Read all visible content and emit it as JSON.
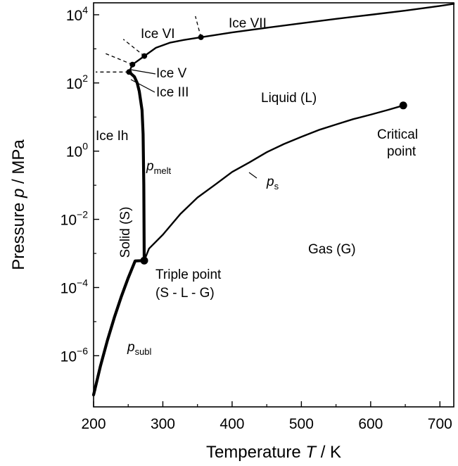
{
  "chart_data": {
    "type": "line",
    "xlabel": {
      "prefix": "Temperature ",
      "symbol": "T",
      "suffix": " / K"
    },
    "ylabel": {
      "prefix": "Pressure ",
      "symbol": "p",
      "suffix": " / MPa"
    },
    "xlim": [
      200,
      720
    ],
    "ylim_log10": [
      -7.5,
      4.35
    ],
    "y_scale": "log",
    "grid": false,
    "x_ticks": [
      {
        "value": 200,
        "label": "200"
      },
      {
        "value": 300,
        "label": "300"
      },
      {
        "value": 400,
        "label": "400"
      },
      {
        "value": 500,
        "label": "500"
      },
      {
        "value": 600,
        "label": "600"
      },
      {
        "value": 700,
        "label": "700"
      }
    ],
    "y_ticks": [
      {
        "exp": 4,
        "base": "10",
        "sup": "4"
      },
      {
        "exp": 2,
        "base": "10",
        "sup": "2"
      },
      {
        "exp": 0,
        "base": "10",
        "sup": "0"
      },
      {
        "exp": -2,
        "base": "10",
        "sup": "−2"
      },
      {
        "exp": -4,
        "base": "10",
        "sup": "−4"
      },
      {
        "exp": -6,
        "base": "10",
        "sup": "−6"
      }
    ],
    "series": [
      {
        "key": "sublimation",
        "points": [
          [
            200,
            -7.15
          ],
          [
            210,
            -6.3
          ],
          [
            220,
            -5.55
          ],
          [
            230,
            -4.88
          ],
          [
            240,
            -4.27
          ],
          [
            250,
            -3.72
          ],
          [
            260,
            -3.22
          ],
          [
            273.16,
            -3.21
          ]
        ]
      },
      {
        "key": "melting",
        "points": [
          [
            273.16,
            -3.21
          ],
          [
            272.5,
            -1.0
          ],
          [
            271.5,
            0.5
          ],
          [
            270,
            1.2
          ],
          [
            266,
            1.75
          ],
          [
            263,
            2.0
          ],
          [
            259,
            2.18
          ],
          [
            252,
            2.31
          ],
          [
            251.2,
            2.32
          ]
        ]
      },
      {
        "key": "saturation",
        "points": [
          [
            273.16,
            -3.21
          ],
          [
            280,
            -2.86
          ],
          [
            300,
            -2.45
          ],
          [
            325,
            -1.85
          ],
          [
            350,
            -1.36
          ],
          [
            375,
            -0.99
          ],
          [
            400,
            -0.61
          ],
          [
            425,
            -0.33
          ],
          [
            450,
            -0.03
          ],
          [
            475,
            0.21
          ],
          [
            500,
            0.42
          ],
          [
            525,
            0.62
          ],
          [
            550,
            0.78
          ],
          [
            575,
            0.94
          ],
          [
            600,
            1.07
          ],
          [
            625,
            1.21
          ],
          [
            647.1,
            1.34
          ]
        ]
      },
      {
        "key": "ice_v_vi",
        "points": [
          [
            251.2,
            2.32
          ],
          [
            256.2,
            2.54
          ],
          [
            273.3,
            2.79
          ],
          [
            290,
            3.03
          ],
          [
            310,
            3.18
          ],
          [
            330,
            3.26
          ],
          [
            355,
            3.34
          ]
        ]
      },
      {
        "key": "ice_vii",
        "points": [
          [
            355,
            3.34
          ],
          [
            400,
            3.48
          ],
          [
            450,
            3.62
          ],
          [
            500,
            3.75
          ],
          [
            550,
            3.88
          ],
          [
            600,
            4.0
          ],
          [
            650,
            4.12
          ],
          [
            700,
            4.26
          ],
          [
            720,
            4.32
          ]
        ]
      }
    ],
    "phase_boundaries_dashed": [
      {
        "points": [
          [
            251.2,
            2.32
          ],
          [
            203,
            2.32
          ]
        ]
      },
      {
        "points": [
          [
            256.2,
            2.54
          ],
          [
            215,
            2.88
          ]
        ]
      },
      {
        "points": [
          [
            273.3,
            2.79
          ],
          [
            243,
            3.28
          ]
        ]
      },
      {
        "points": [
          [
            355,
            3.34
          ],
          [
            347,
            3.96
          ]
        ]
      }
    ],
    "markers": [
      {
        "name": "triple-point",
        "x": 273.16,
        "y": -3.21
      },
      {
        "name": "ice-iii-point",
        "x": 251.2,
        "y": 2.32
      },
      {
        "name": "ice-v-point",
        "x": 256.2,
        "y": 2.54
      },
      {
        "name": "ice-vi-point",
        "x": 273.3,
        "y": 2.79
      },
      {
        "name": "ice-vii-point",
        "x": 355,
        "y": 3.34
      },
      {
        "name": "critical-point",
        "x": 647.1,
        "y": 1.34
      }
    ],
    "region_labels": {
      "ice_vi": "Ice VI",
      "ice_vii": "Ice VII",
      "ice_v": "Ice V",
      "ice_iii": "Ice III",
      "liquid": "Liquid (L)",
      "ice_ih": "Ice Ih",
      "solid": "Solid (S)",
      "gas": "Gas (G)",
      "critical_line1": "Critical",
      "critical_line2": "point",
      "triple_line1": "Triple point",
      "triple_line2": "(S - L - G)"
    },
    "curve_labels": {
      "melt": {
        "symbol": "p",
        "sub": "melt"
      },
      "saturation": {
        "symbol": "p",
        "sub": "s"
      },
      "subl": {
        "symbol": "p",
        "sub": "subl"
      }
    }
  }
}
